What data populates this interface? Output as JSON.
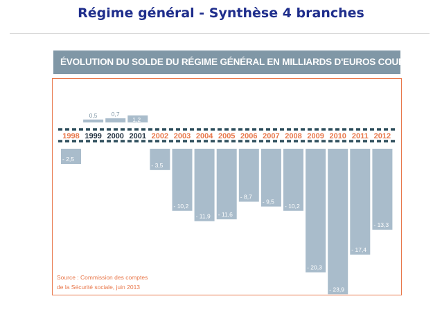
{
  "slide": {
    "title": "Régime général - Synthèse 4 branches"
  },
  "chart_data": {
    "type": "bar",
    "title": "ÉVOLUTION DU SOLDE DU RÉGIME GÉNÉRAL EN MILLIARDS D'EUROS COURANTS",
    "categories": [
      "1998",
      "1999",
      "2000",
      "2001",
      "2002",
      "2003",
      "2004",
      "2005",
      "2006",
      "2007",
      "2008",
      "2009",
      "2010",
      "2011",
      "2012"
    ],
    "values": [
      -2.5,
      0.5,
      0.7,
      1.2,
      -3.5,
      -10.2,
      -11.9,
      -11.6,
      -8.7,
      -9.5,
      -10.2,
      -20.3,
      -23.9,
      -17.4,
      -13.3
    ],
    "value_labels": [
      "- 2,5",
      "0,5",
      "0,7",
      "1,2",
      "- 3,5",
      "- 10,2",
      "- 11,9",
      "- 11,6",
      "- 8,7",
      "- 9,5",
      "- 10,2",
      "- 20,3",
      "- 23,9",
      "- 17,4",
      "- 13,3"
    ],
    "xlabel": "",
    "ylabel": "",
    "ylim": [
      -23.9,
      1.2
    ],
    "grid": false,
    "legend": "none",
    "colors": {
      "bar": "#a9bccb",
      "year_negative": "#e8774a",
      "year_positive": "#1f2e3d",
      "zero_line": "#2e4e5c",
      "frame": "#e8774a",
      "header_bg": "#8097a6",
      "title": "#1f2e8c",
      "positive_label": "#8097a6"
    },
    "source": {
      "line1": "Source : Commission des comptes",
      "line2": "de la Sécurité sociale, juin 2013"
    }
  }
}
